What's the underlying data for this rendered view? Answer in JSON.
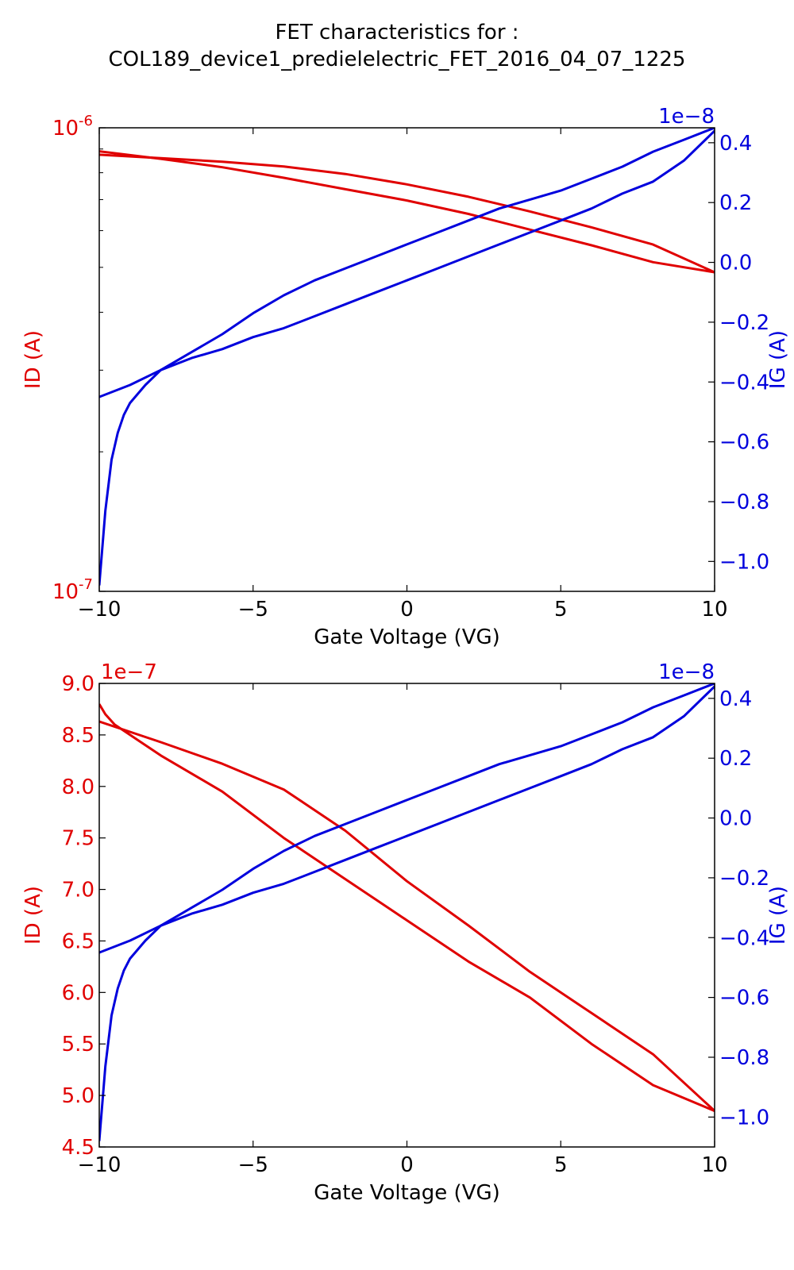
{
  "figure": {
    "title_line1": "FET characteristics for :",
    "title_line2": "COL189_device1_predielelectric_FET_2016_04_07_1225"
  },
  "colors": {
    "id_series": "#e00000",
    "ig_series": "#0000dd",
    "axes": "#000000"
  },
  "chart_data": [
    {
      "type": "line",
      "xlabel": "Gate Voltage (VG)",
      "ylabel": "ID (A)",
      "y2label": "IG (A)",
      "xlim": [
        -10,
        10
      ],
      "xticks": [
        -10,
        -5,
        0,
        5,
        10
      ],
      "xtick_labels": [
        "−10",
        "−5",
        "0",
        "5",
        "10"
      ],
      "yscale": "log",
      "ylim": [
        1e-07,
        1e-06
      ],
      "ytick_labels": [
        {
          "base": "10",
          "exp": "-6",
          "value": 1e-06
        },
        {
          "base": "10",
          "exp": "-7",
          "value": 1e-07
        }
      ],
      "y2lim": [
        -1.1e-08,
        4.5e-09
      ],
      "y2_offset_label": "1e−8",
      "y2ticks": [
        0.4,
        0.2,
        0.0,
        -0.2,
        -0.4,
        -0.6,
        -0.8,
        -1.0
      ],
      "y2tick_labels": [
        "0.4",
        "0.2",
        "0.0",
        "−0.2",
        "−0.4",
        "−0.6",
        "−0.8",
        "−1.0"
      ],
      "grid": false,
      "series": [
        {
          "axis": "left",
          "color": "#e00000",
          "x": [
            -10,
            -8,
            -6,
            -4,
            -2,
            0,
            2,
            4,
            6,
            8,
            10
          ],
          "y": [
            8.9e-07,
            8.57e-07,
            8.22e-07,
            7.8e-07,
            7.37e-07,
            6.97e-07,
            6.52e-07,
            6.03e-07,
            5.58e-07,
            5.13e-07,
            4.88e-07
          ]
        },
        {
          "axis": "left",
          "color": "#e00000",
          "x": [
            -10,
            -8,
            -6,
            -4,
            -2,
            0,
            2,
            4,
            6,
            8,
            10
          ],
          "y": [
            8.75e-07,
            8.6e-07,
            8.45e-07,
            8.25e-07,
            7.95e-07,
            7.55e-07,
            7.1e-07,
            6.6e-07,
            6.1e-07,
            5.6e-07,
            4.88e-07
          ]
        },
        {
          "axis": "right",
          "color": "#0000dd",
          "x": [
            -10,
            -9.8,
            -9.6,
            -9.4,
            -9.2,
            -9,
            -8.5,
            -8,
            -7,
            -6,
            -5,
            -4,
            -3,
            -2,
            -1,
            0,
            1,
            2,
            3,
            4,
            5,
            6,
            7,
            8,
            9,
            10
          ],
          "y": [
            -1.08,
            -0.83,
            -0.66,
            -0.57,
            -0.51,
            -0.47,
            -0.41,
            -0.36,
            -0.32,
            -0.29,
            -0.25,
            -0.22,
            -0.18,
            -0.14,
            -0.1,
            -0.06,
            -0.02,
            0.02,
            0.06,
            0.1,
            0.14,
            0.18,
            0.23,
            0.27,
            0.34,
            0.44
          ]
        },
        {
          "axis": "right",
          "color": "#0000dd",
          "x": [
            -10,
            -9,
            -8,
            -7,
            -6,
            -5,
            -4,
            -3,
            -2,
            -1,
            0,
            1,
            2,
            3,
            4,
            5,
            6,
            7,
            8,
            9,
            10
          ],
          "y": [
            -0.45,
            -0.41,
            -0.36,
            -0.3,
            -0.24,
            -0.17,
            -0.11,
            -0.06,
            -0.02,
            0.02,
            0.06,
            0.1,
            0.14,
            0.18,
            0.21,
            0.24,
            0.28,
            0.32,
            0.37,
            0.41,
            0.45
          ]
        }
      ]
    },
    {
      "type": "line",
      "xlabel": "Gate Voltage (VG)",
      "ylabel": "ID (A)",
      "y2label": "IG (A)",
      "xlim": [
        -10,
        10
      ],
      "xticks": [
        -10,
        -5,
        0,
        5,
        10
      ],
      "xtick_labels": [
        "−10",
        "−5",
        "0",
        "5",
        "10"
      ],
      "yscale": "linear",
      "ylim": [
        4.5,
        9.0
      ],
      "y_offset_label": "1e−7",
      "yticks": [
        9.0,
        8.5,
        8.0,
        7.5,
        7.0,
        6.5,
        6.0,
        5.5,
        5.0,
        4.5
      ],
      "ytick_labels": [
        "9.0",
        "8.5",
        "8.0",
        "7.5",
        "7.0",
        "6.5",
        "6.0",
        "5.5",
        "5.0",
        "4.5"
      ],
      "y2lim": [
        -1.1e-08,
        4.5e-09
      ],
      "y2_offset_label": "1e−8",
      "y2ticks": [
        0.4,
        0.2,
        0.0,
        -0.2,
        -0.4,
        -0.6,
        -0.8,
        -1.0
      ],
      "y2tick_labels": [
        "0.4",
        "0.2",
        "0.0",
        "−0.2",
        "−0.4",
        "−0.6",
        "−0.8",
        "−1.0"
      ],
      "grid": false,
      "series": [
        {
          "axis": "left",
          "color": "#e00000",
          "x": [
            -10,
            -9.8,
            -9.5,
            -8,
            -6,
            -4,
            -2,
            0,
            2,
            4,
            6,
            8,
            10
          ],
          "y": [
            8.8,
            8.7,
            8.6,
            8.3,
            7.95,
            7.5,
            7.1,
            6.7,
            6.3,
            5.95,
            5.5,
            5.1,
            4.85
          ]
        },
        {
          "axis": "left",
          "color": "#e00000",
          "x": [
            -10,
            -8,
            -6,
            -4,
            -2,
            0,
            2,
            4,
            6,
            8,
            10
          ],
          "y": [
            8.63,
            8.43,
            8.22,
            7.97,
            7.57,
            7.08,
            6.65,
            6.2,
            5.8,
            5.4,
            4.85
          ]
        },
        {
          "axis": "right",
          "color": "#0000dd",
          "x": [
            -10,
            -9.8,
            -9.6,
            -9.4,
            -9.2,
            -9,
            -8.5,
            -8,
            -7,
            -6,
            -5,
            -4,
            -3,
            -2,
            -1,
            0,
            1,
            2,
            3,
            4,
            5,
            6,
            7,
            8,
            9,
            10
          ],
          "y": [
            -1.08,
            -0.83,
            -0.66,
            -0.57,
            -0.51,
            -0.47,
            -0.41,
            -0.36,
            -0.32,
            -0.29,
            -0.25,
            -0.22,
            -0.18,
            -0.14,
            -0.1,
            -0.06,
            -0.02,
            0.02,
            0.06,
            0.1,
            0.14,
            0.18,
            0.23,
            0.27,
            0.34,
            0.44
          ]
        },
        {
          "axis": "right",
          "color": "#0000dd",
          "x": [
            -10,
            -9,
            -8,
            -7,
            -6,
            -5,
            -4,
            -3,
            -2,
            -1,
            0,
            1,
            2,
            3,
            4,
            5,
            6,
            7,
            8,
            9,
            10
          ],
          "y": [
            -0.45,
            -0.41,
            -0.36,
            -0.3,
            -0.24,
            -0.17,
            -0.11,
            -0.06,
            -0.02,
            0.02,
            0.06,
            0.1,
            0.14,
            0.18,
            0.21,
            0.24,
            0.28,
            0.32,
            0.37,
            0.41,
            0.45
          ]
        }
      ]
    }
  ]
}
